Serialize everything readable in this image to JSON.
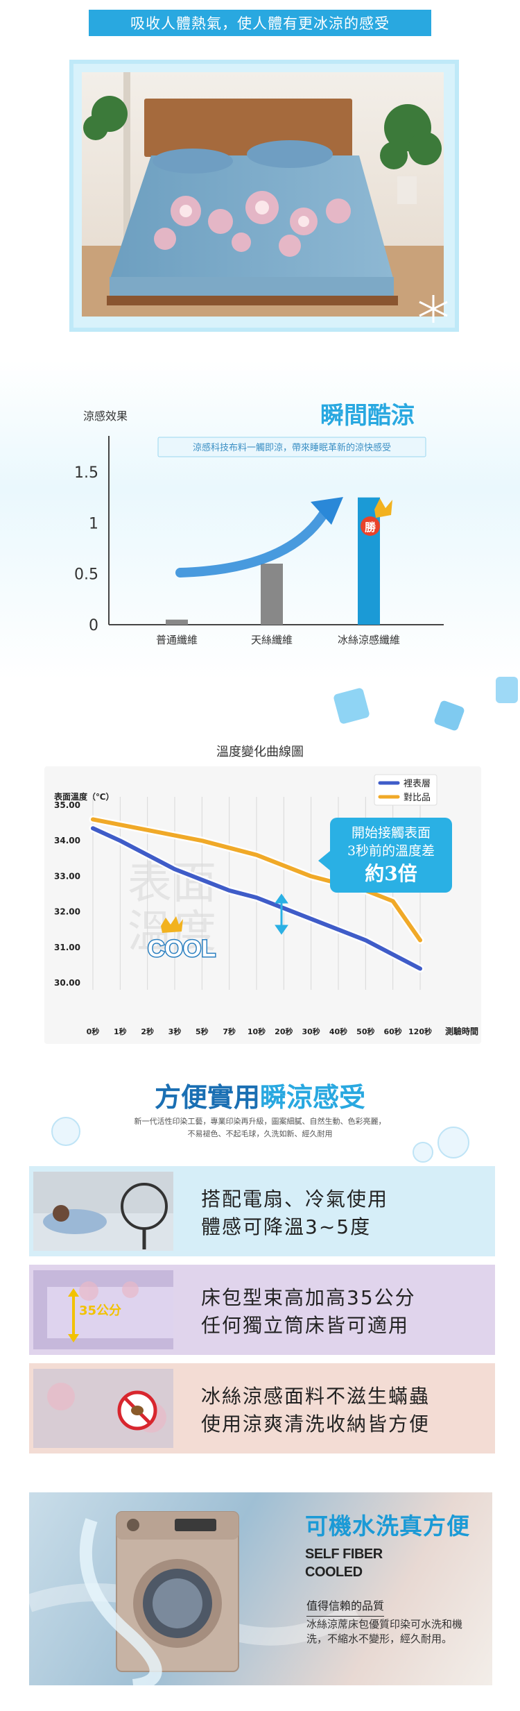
{
  "section1": {
    "banner": "吸收人體熱氣，使人體有更冰涼的感受"
  },
  "chart1": {
    "title": "瞬間酷涼",
    "tagline": "涼感科技布料一觸即涼，帶來睡眠革新的涼快感受",
    "badge": "勝",
    "colors": {
      "bar": "#1b9ad6",
      "grey": "#888888",
      "arrow": "#2a88d8",
      "title": "#29a8e0"
    }
  },
  "chart2": {
    "caption": "溫度變化曲線圖",
    "watermark_line1": "表面",
    "watermark_line2": "溫度",
    "cool_label": "COOL",
    "callout_line1": "開始接觸表面",
    "callout_line2": "3秒前的溫度差",
    "callout_line3": "約3倍",
    "colors": {
      "series1": "#3f5cc8",
      "series2": "#f0a928",
      "callout": "#2ab0e4"
    }
  },
  "features": {
    "title_part1": "方便實用",
    "title_part2": "瞬涼感受",
    "subtitle_line1": "新一代活性印染工藝，專業印染再升級，圖案細膩、自然生動、色彩亮麗，",
    "subtitle_line2": "不易褪色、不起毛球，久洗如新、經久耐用",
    "items": [
      {
        "line1": "搭配電扇、冷氣使用",
        "line2": "體感可降溫3~5度",
        "bg": "#d6eef8"
      },
      {
        "line1": "床包型束高加高35公分",
        "line2": "任何獨立筒床皆可適用",
        "badge": "35公分",
        "bg": "#e0d4ec"
      },
      {
        "line1": "冰絲涼感面料不滋生蟎蟲",
        "line2": "使用涼爽清洗收納皆方便",
        "bg": "#f3dcd4"
      }
    ]
  },
  "washer": {
    "title": "可機水洗真方便",
    "brand_line1": "SELF FIBER",
    "brand_line2": "COOLED",
    "quality": "值得信賴的品質",
    "desc": "冰絲涼蓆床包優質印染可水洗和機洗，不縮水不變形，經久耐用。"
  },
  "chart_data": [
    {
      "type": "bar",
      "categories": [
        "普通纖維",
        "天絲纖維",
        "冰絲涼感纖維"
      ],
      "values": [
        0.05,
        0.6,
        1.25
      ],
      "ylabel": "涼感效果",
      "ylim": [
        0,
        1.5
      ],
      "yticks": [
        "0",
        "0.5",
        "1",
        "1.5"
      ]
    },
    {
      "type": "line",
      "x": [
        "0秒",
        "1秒",
        "2秒",
        "3秒",
        "5秒",
        "7秒",
        "10秒",
        "20秒",
        "30秒",
        "40秒",
        "50秒",
        "60秒",
        "120秒"
      ],
      "xlabel": "測驗時間",
      "ylabel": "表面溫度（℃）",
      "ylim": [
        30,
        35
      ],
      "yticks": [
        "35.00",
        "34.00",
        "33.00",
        "32.00",
        "31.00",
        "30.00"
      ],
      "series": [
        {
          "name": "裡表層",
          "values": [
            34.35,
            34.0,
            33.6,
            33.2,
            32.9,
            32.6,
            32.4,
            32.1,
            31.8,
            31.5,
            31.2,
            30.8,
            30.4
          ]
        },
        {
          "name": "對比品",
          "values": [
            34.6,
            34.45,
            34.3,
            34.15,
            34.0,
            33.8,
            33.6,
            33.3,
            33.0,
            32.8,
            32.6,
            32.3,
            31.2
          ]
        }
      ]
    }
  ]
}
